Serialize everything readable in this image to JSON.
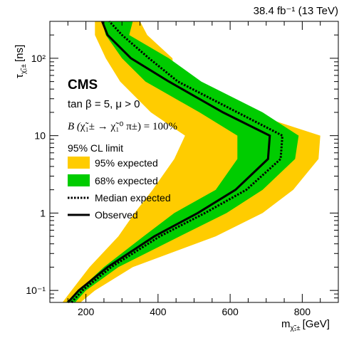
{
  "lumi_label": "38.4 fb⁻¹ (13 TeV)",
  "experiment": "CMS",
  "params_line": "tan β = 5, μ > 0",
  "br_prefix": "B (",
  "br_body": "χ̃₁± → χ̃₁⁰ π±",
  "br_suffix": ") = 100%",
  "chart_data": {
    "type": "area",
    "xlabel": "m",
    "xlabel_sub": "χ̃₁±",
    "xlabel_unit": "[GeV]",
    "ylabel": "τ",
    "ylabel_sub": "χ̃₁±",
    "ylabel_unit": "[ns]",
    "xlim": [
      100,
      900
    ],
    "ylim": [
      0.07,
      300
    ],
    "yscale": "log",
    "xticks": [
      "200",
      "400",
      "600",
      "800"
    ],
    "yticks": [
      "10⁻¹",
      "1",
      "10",
      "10²"
    ],
    "legend_title": "95% CL limit",
    "legend_position": "left",
    "legend": [
      {
        "label": "95% expected",
        "kind": "fill",
        "color": "#ffcc00"
      },
      {
        "label": "68% expected",
        "kind": "fill",
        "color": "#00cc00"
      },
      {
        "label": "Median expected",
        "kind": "dotted"
      },
      {
        "label": "Observed",
        "kind": "solid"
      }
    ],
    "tau_points": [
      0.07,
      0.1,
      0.2,
      0.5,
      1,
      2,
      5,
      10,
      20,
      50,
      100,
      200,
      300
    ],
    "band95": {
      "lower": [
        135,
        160,
        210,
        290,
        335,
        385,
        445,
        475,
        380,
        295,
        255,
        225,
        225
      ],
      "upper": [
        185,
        225,
        330,
        560,
        690,
        775,
        845,
        850,
        650,
        445,
        440,
        370,
        350
      ]
    },
    "band68": {
      "lower": [
        145,
        180,
        250,
        360,
        445,
        560,
        620,
        620,
        515,
        365,
        300,
        255,
        245
      ],
      "upper": [
        170,
        200,
        290,
        460,
        590,
        690,
        780,
        790,
        690,
        520,
        430,
        320,
        330
      ]
    },
    "median": [
      160,
      190,
      270,
      405,
      530,
      645,
      740,
      745,
      620,
      455,
      375,
      300,
      265
    ],
    "observed": [
      150,
      180,
      260,
      390,
      510,
      615,
      705,
      710,
      580,
      430,
      325,
      260,
      245
    ]
  }
}
